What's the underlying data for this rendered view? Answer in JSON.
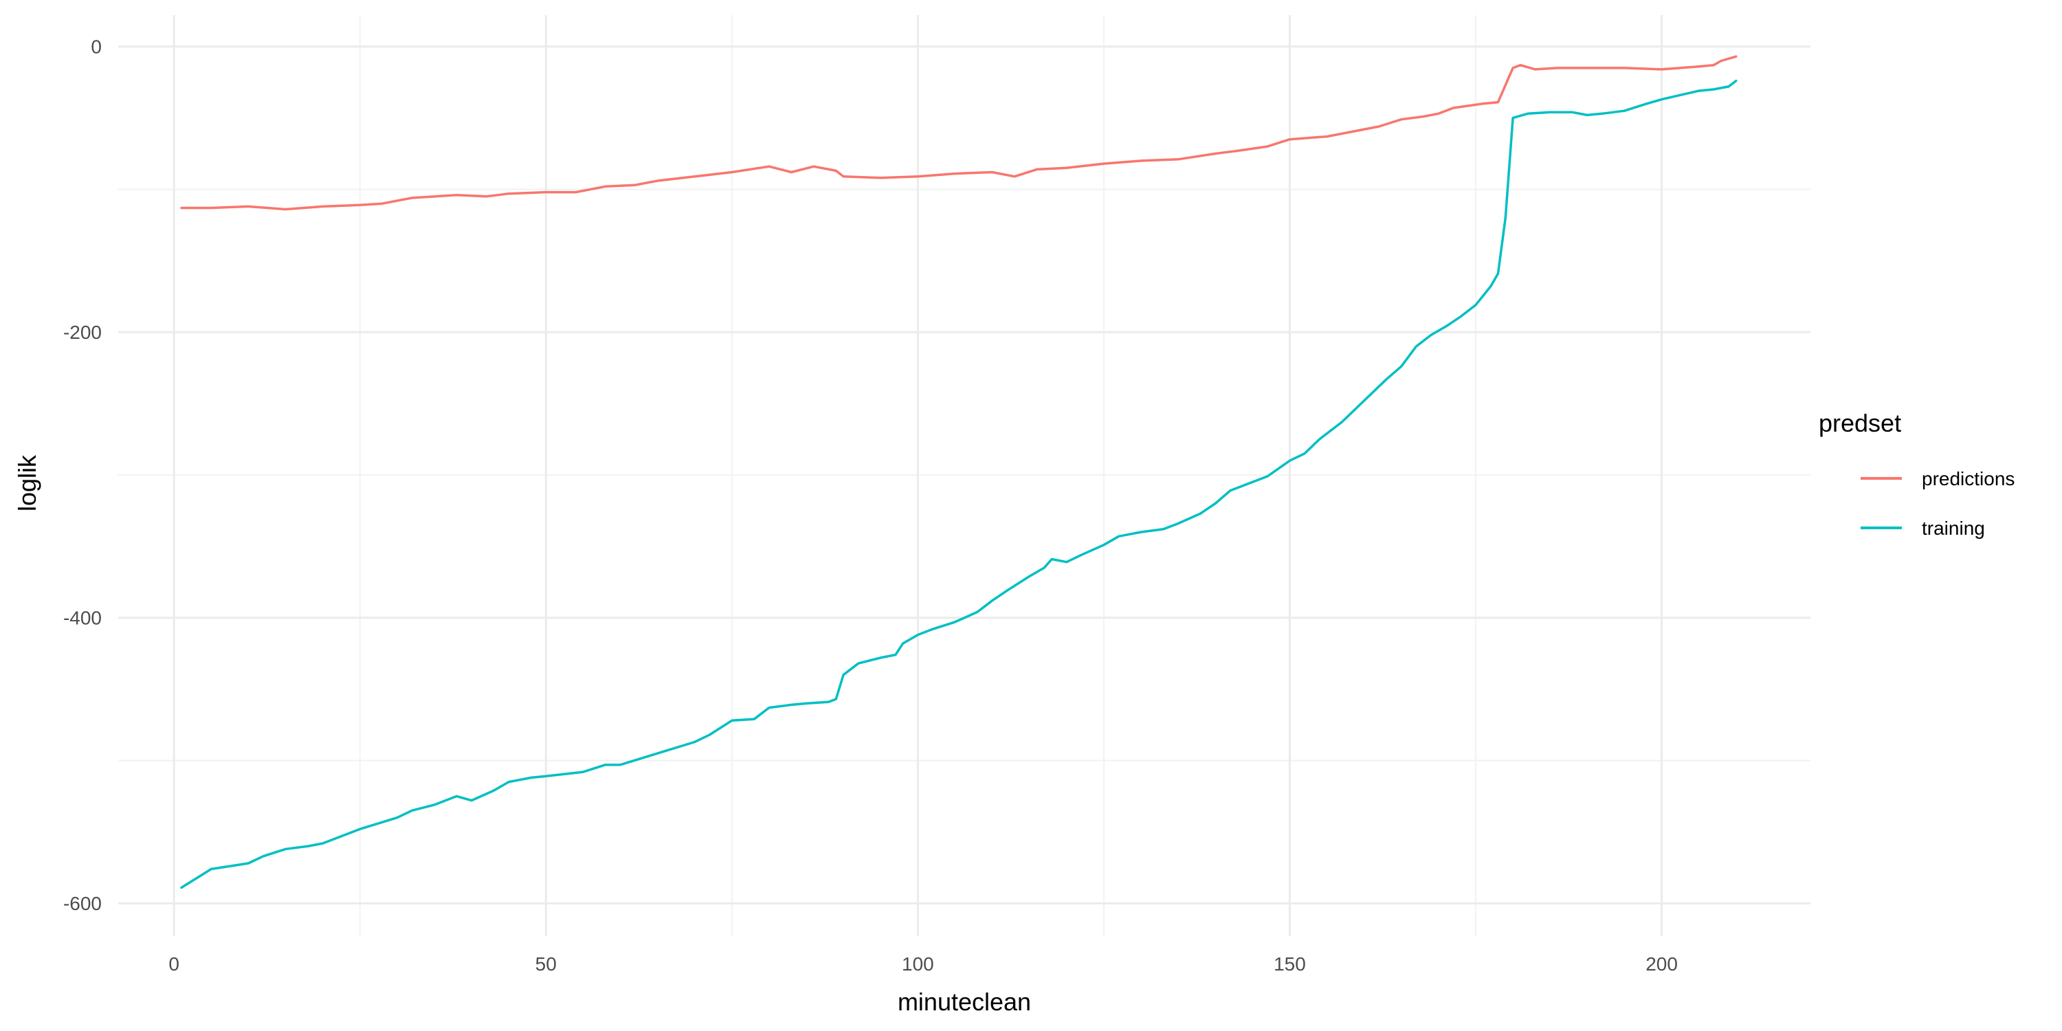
{
  "chart_data": {
    "type": "line",
    "title": "",
    "xlabel": "minuteclean",
    "ylabel": "loglik",
    "xlim": [
      -7.5,
      220
    ],
    "ylim": [
      -623,
      22
    ],
    "x_ticks": [
      0,
      50,
      100,
      150,
      200
    ],
    "x_minor_ticks": [
      25,
      75,
      125,
      175
    ],
    "y_ticks": [
      0,
      -200,
      -400,
      -600
    ],
    "y_minor_ticks": [
      -100,
      -300,
      -500
    ],
    "x_tick_labels": [
      "0",
      "50",
      "100",
      "150",
      "200"
    ],
    "y_tick_labels": [
      "0",
      "-200",
      "-400",
      "-600"
    ],
    "grid": true,
    "legend": {
      "title": "predset",
      "position": "right"
    },
    "series": [
      {
        "name": "predictions",
        "color": "#F8766D",
        "points": [
          [
            1,
            -113
          ],
          [
            5,
            -113
          ],
          [
            10,
            -112
          ],
          [
            15,
            -114
          ],
          [
            20,
            -112
          ],
          [
            25,
            -111
          ],
          [
            28,
            -110
          ],
          [
            32,
            -106
          ],
          [
            38,
            -104
          ],
          [
            42,
            -105
          ],
          [
            45,
            -103
          ],
          [
            50,
            -102
          ],
          [
            54,
            -102
          ],
          [
            58,
            -98
          ],
          [
            62,
            -97
          ],
          [
            65,
            -94
          ],
          [
            70,
            -91
          ],
          [
            75,
            -88
          ],
          [
            80,
            -84
          ],
          [
            83,
            -88
          ],
          [
            86,
            -84
          ],
          [
            89,
            -87
          ],
          [
            90,
            -91
          ],
          [
            95,
            -92
          ],
          [
            100,
            -91
          ],
          [
            105,
            -89
          ],
          [
            110,
            -88
          ],
          [
            113,
            -91
          ],
          [
            116,
            -86
          ],
          [
            120,
            -85
          ],
          [
            125,
            -82
          ],
          [
            130,
            -80
          ],
          [
            135,
            -79
          ],
          [
            140,
            -75
          ],
          [
            143,
            -73
          ],
          [
            147,
            -70
          ],
          [
            150,
            -65
          ],
          [
            155,
            -63
          ],
          [
            158,
            -60
          ],
          [
            162,
            -56
          ],
          [
            165,
            -51
          ],
          [
            168,
            -49
          ],
          [
            170,
            -47
          ],
          [
            172,
            -43
          ],
          [
            176,
            -40
          ],
          [
            178,
            -39
          ],
          [
            180,
            -15
          ],
          [
            181,
            -13
          ],
          [
            183,
            -16
          ],
          [
            186,
            -15
          ],
          [
            190,
            -15
          ],
          [
            195,
            -15
          ],
          [
            200,
            -16
          ],
          [
            205,
            -14
          ],
          [
            207,
            -13
          ],
          [
            208,
            -10
          ],
          [
            210,
            -7
          ]
        ]
      },
      {
        "name": "training",
        "color": "#00BFC4",
        "points": [
          [
            1,
            -589
          ],
          [
            5,
            -576
          ],
          [
            10,
            -572
          ],
          [
            12,
            -567
          ],
          [
            15,
            -562
          ],
          [
            18,
            -560
          ],
          [
            20,
            -558
          ],
          [
            25,
            -548
          ],
          [
            30,
            -540
          ],
          [
            32,
            -535
          ],
          [
            35,
            -531
          ],
          [
            38,
            -525
          ],
          [
            40,
            -528
          ],
          [
            43,
            -521
          ],
          [
            45,
            -515
          ],
          [
            48,
            -512
          ],
          [
            50,
            -511
          ],
          [
            55,
            -508
          ],
          [
            58,
            -503
          ],
          [
            60,
            -503
          ],
          [
            65,
            -495
          ],
          [
            70,
            -487
          ],
          [
            72,
            -482
          ],
          [
            75,
            -472
          ],
          [
            78,
            -471
          ],
          [
            80,
            -463
          ],
          [
            83,
            -461
          ],
          [
            85,
            -460
          ],
          [
            88,
            -459
          ],
          [
            89,
            -457
          ],
          [
            90,
            -440
          ],
          [
            92,
            -432
          ],
          [
            95,
            -428
          ],
          [
            97,
            -426
          ],
          [
            98,
            -418
          ],
          [
            100,
            -412
          ],
          [
            102,
            -408
          ],
          [
            105,
            -403
          ],
          [
            108,
            -396
          ],
          [
            110,
            -388
          ],
          [
            112,
            -381
          ],
          [
            115,
            -371
          ],
          [
            117,
            -365
          ],
          [
            118,
            -359
          ],
          [
            120,
            -361
          ],
          [
            122,
            -356
          ],
          [
            125,
            -349
          ],
          [
            127,
            -343
          ],
          [
            130,
            -340
          ],
          [
            133,
            -338
          ],
          [
            135,
            -334
          ],
          [
            138,
            -327
          ],
          [
            140,
            -320
          ],
          [
            142,
            -311
          ],
          [
            145,
            -305
          ],
          [
            147,
            -301
          ],
          [
            150,
            -290
          ],
          [
            152,
            -285
          ],
          [
            154,
            -275
          ],
          [
            157,
            -263
          ],
          [
            160,
            -248
          ],
          [
            163,
            -233
          ],
          [
            165,
            -224
          ],
          [
            167,
            -210
          ],
          [
            169,
            -202
          ],
          [
            171,
            -196
          ],
          [
            173,
            -189
          ],
          [
            175,
            -181
          ],
          [
            177,
            -168
          ],
          [
            178,
            -159
          ],
          [
            179,
            -120
          ],
          [
            180,
            -50
          ],
          [
            182,
            -47
          ],
          [
            185,
            -46
          ],
          [
            188,
            -46
          ],
          [
            190,
            -48
          ],
          [
            192,
            -47
          ],
          [
            195,
            -45
          ],
          [
            198,
            -40
          ],
          [
            200,
            -37
          ],
          [
            205,
            -31
          ],
          [
            207,
            -30
          ],
          [
            209,
            -28
          ],
          [
            210,
            -24
          ]
        ]
      }
    ]
  }
}
